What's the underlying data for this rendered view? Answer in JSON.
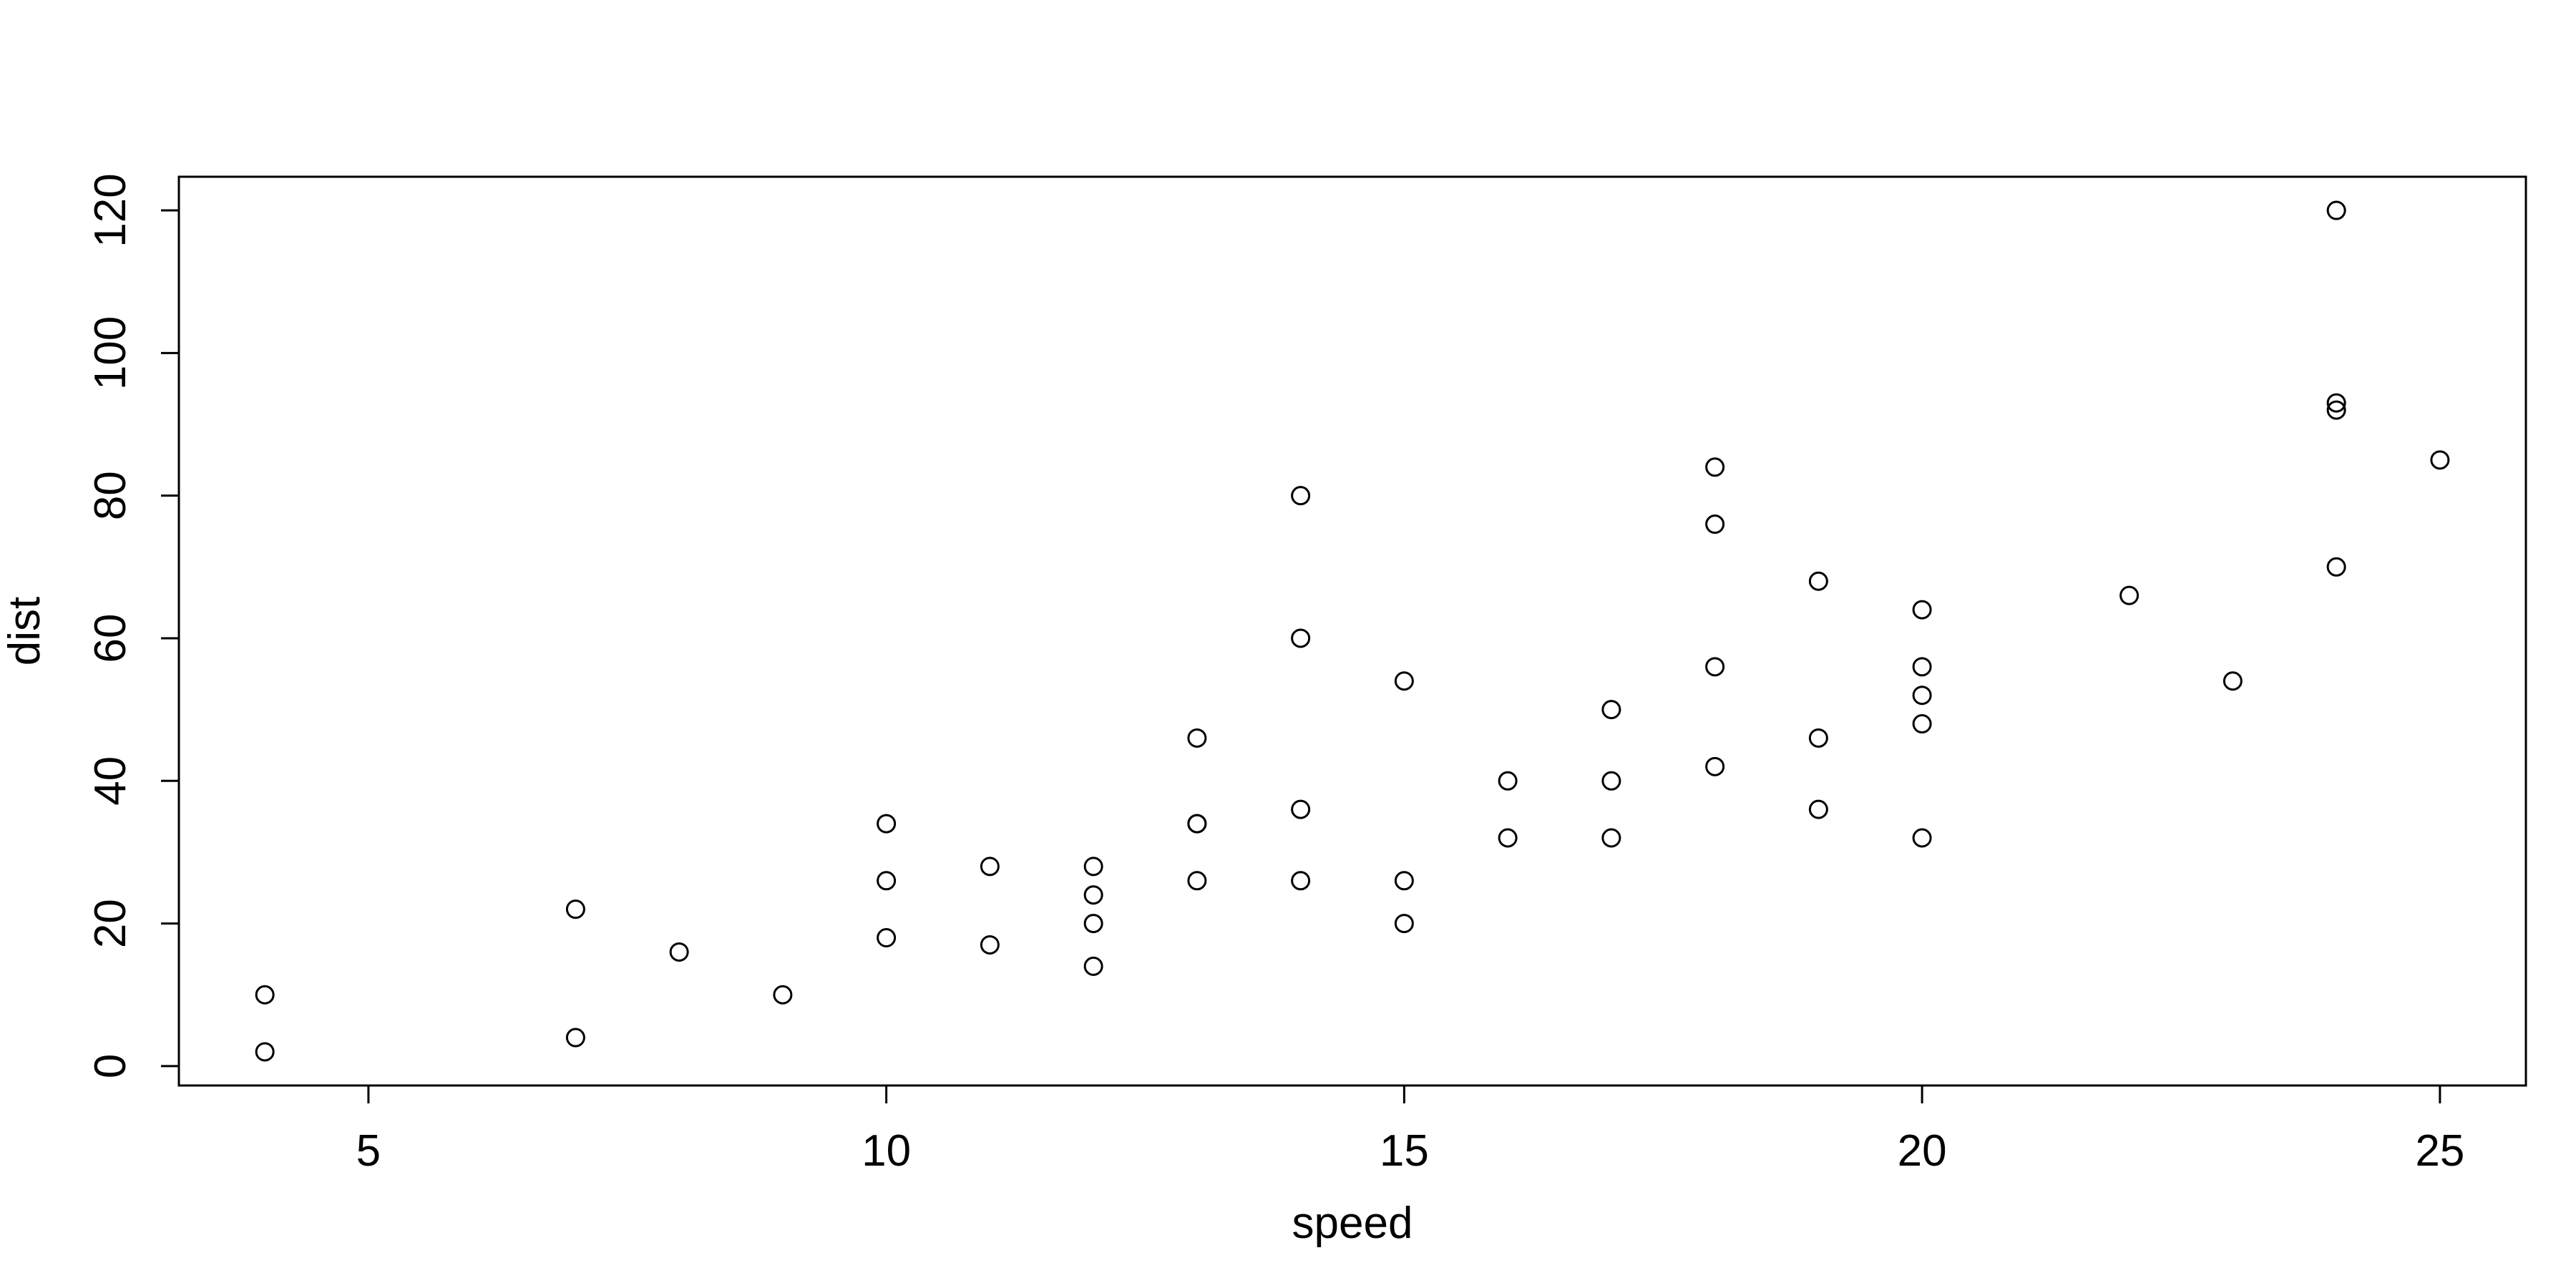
{
  "chart_data": {
    "type": "scatter",
    "title": "",
    "xlabel": "speed",
    "ylabel": "dist",
    "xlim": [
      3.17,
      25.83
    ],
    "ylim": [
      -2.72,
      124.72
    ],
    "x_ticks": [
      5,
      10,
      15,
      20,
      25
    ],
    "y_ticks": [
      0,
      20,
      40,
      60,
      80,
      100,
      120
    ],
    "x_tick_labels": [
      "5",
      "10",
      "15",
      "20",
      "25"
    ],
    "y_tick_labels": [
      "0",
      "20",
      "40",
      "60",
      "80",
      "100",
      "120"
    ],
    "grid": false,
    "marker": "open-circle",
    "points": [
      {
        "x": 4,
        "y": 2
      },
      {
        "x": 4,
        "y": 10
      },
      {
        "x": 7,
        "y": 4
      },
      {
        "x": 7,
        "y": 22
      },
      {
        "x": 8,
        "y": 16
      },
      {
        "x": 9,
        "y": 10
      },
      {
        "x": 10,
        "y": 18
      },
      {
        "x": 10,
        "y": 26
      },
      {
        "x": 10,
        "y": 34
      },
      {
        "x": 11,
        "y": 17
      },
      {
        "x": 11,
        "y": 28
      },
      {
        "x": 12,
        "y": 14
      },
      {
        "x": 12,
        "y": 20
      },
      {
        "x": 12,
        "y": 24
      },
      {
        "x": 12,
        "y": 28
      },
      {
        "x": 13,
        "y": 26
      },
      {
        "x": 13,
        "y": 34
      },
      {
        "x": 13,
        "y": 34
      },
      {
        "x": 13,
        "y": 46
      },
      {
        "x": 14,
        "y": 26
      },
      {
        "x": 14,
        "y": 36
      },
      {
        "x": 14,
        "y": 60
      },
      {
        "x": 14,
        "y": 80
      },
      {
        "x": 15,
        "y": 20
      },
      {
        "x": 15,
        "y": 26
      },
      {
        "x": 15,
        "y": 54
      },
      {
        "x": 16,
        "y": 32
      },
      {
        "x": 16,
        "y": 40
      },
      {
        "x": 17,
        "y": 32
      },
      {
        "x": 17,
        "y": 40
      },
      {
        "x": 17,
        "y": 50
      },
      {
        "x": 18,
        "y": 42
      },
      {
        "x": 18,
        "y": 56
      },
      {
        "x": 18,
        "y": 76
      },
      {
        "x": 18,
        "y": 84
      },
      {
        "x": 19,
        "y": 36
      },
      {
        "x": 19,
        "y": 46
      },
      {
        "x": 19,
        "y": 68
      },
      {
        "x": 20,
        "y": 32
      },
      {
        "x": 20,
        "y": 48
      },
      {
        "x": 20,
        "y": 52
      },
      {
        "x": 20,
        "y": 56
      },
      {
        "x": 20,
        "y": 64
      },
      {
        "x": 22,
        "y": 66
      },
      {
        "x": 23,
        "y": 54
      },
      {
        "x": 24,
        "y": 70
      },
      {
        "x": 24,
        "y": 92
      },
      {
        "x": 24,
        "y": 93
      },
      {
        "x": 24,
        "y": 120
      },
      {
        "x": 25,
        "y": 85
      }
    ]
  }
}
